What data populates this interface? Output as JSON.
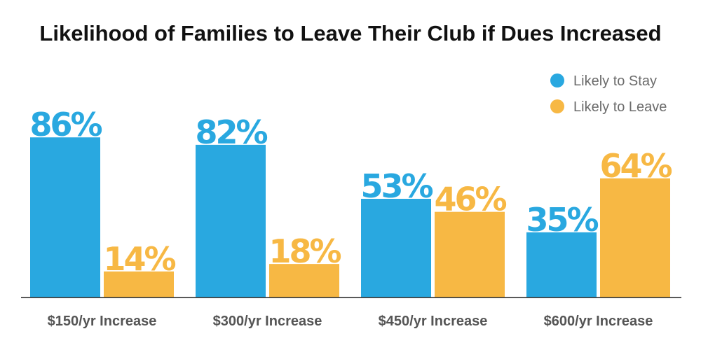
{
  "chart_data": {
    "type": "bar",
    "title": "Likelihood of Families to Leave Their Club if Dues Increased",
    "categories": [
      "$150/yr Increase",
      "$300/yr Increase",
      "$450/yr Increase",
      "$600/yr Increase"
    ],
    "series": [
      {
        "name": "Likely to Stay",
        "values": [
          86,
          82,
          53,
          35
        ],
        "color": "#29a8e0"
      },
      {
        "name": "Likely to Leave",
        "values": [
          14,
          18,
          46,
          64
        ],
        "color": "#f7b844"
      }
    ],
    "value_suffix": "%",
    "ylim": [
      0,
      100
    ],
    "grid": false,
    "legend_position": "top-right"
  }
}
